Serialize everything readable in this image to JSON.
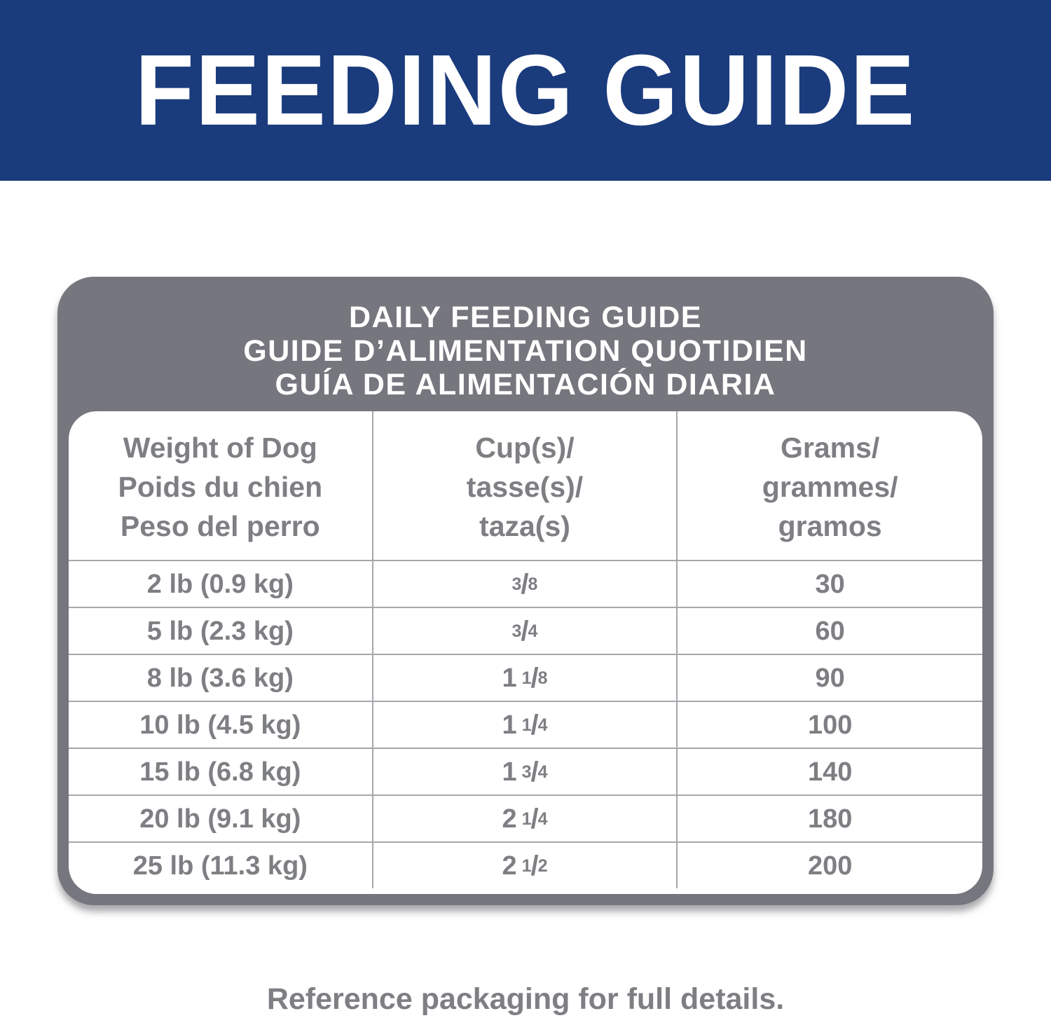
{
  "banner": {
    "title": "FEEDING GUIDE"
  },
  "table": {
    "header": {
      "lines": [
        "DAILY FEEDING GUIDE",
        "GUIDE D’ALIMENTATION QUOTIDIEN",
        "GUÍA DE ALIMENTACIÓN DIARIA"
      ]
    },
    "columns": [
      {
        "lines": [
          "Weight of Dog",
          "Poids du chien",
          "Peso del perro"
        ]
      },
      {
        "lines": [
          "Cup(s)/",
          "tasse(s)/",
          "taza(s)"
        ]
      },
      {
        "lines": [
          "Grams/",
          "grammes/",
          "gramos"
        ]
      }
    ],
    "rows": [
      {
        "weight": "2 lb (0.9 kg)",
        "cups": "3/8",
        "grams": "30"
      },
      {
        "weight": "5 lb (2.3 kg)",
        "cups": "3/4",
        "grams": "60"
      },
      {
        "weight": "8 lb (3.6 kg)",
        "cups": "1 1/8",
        "grams": "90"
      },
      {
        "weight": "10 lb (4.5 kg)",
        "cups": "1 1/4",
        "grams": "100"
      },
      {
        "weight": "15 lb (6.8 kg)",
        "cups": "1 3/4",
        "grams": "140"
      },
      {
        "weight": "20 lb (9.1 kg)",
        "cups": "2 1/4",
        "grams": "180"
      },
      {
        "weight": "25 lb (11.3 kg)",
        "cups": "2 1/2",
        "grams": "200"
      }
    ]
  },
  "footer": {
    "note": "Reference packaging for full details."
  },
  "colors": {
    "banner_blue": "#1a3b7c",
    "frame_gray": "#75767e",
    "table_text_gray": "#7e7f83",
    "grid_line_gray": "#a6a7ab",
    "title_white": "#ffffff"
  }
}
